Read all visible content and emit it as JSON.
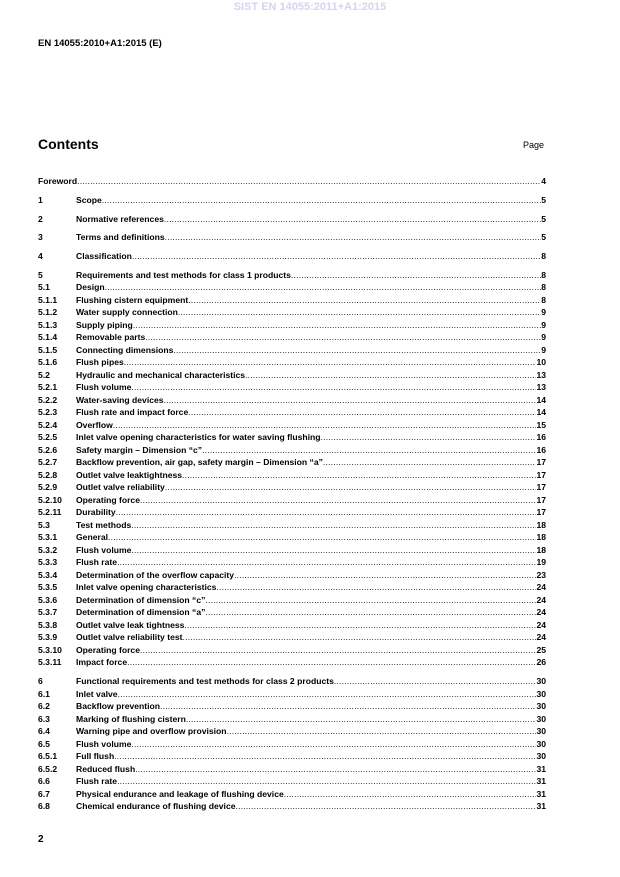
{
  "watermark": "SIST EN 14055:2011+A1:2015",
  "header": {
    "doc_id": "EN 14055:2010+A1:2015 (E)"
  },
  "contents": {
    "title": "Contents",
    "page_label": "Page",
    "entries": [
      {
        "num": "",
        "title": "Foreword",
        "page": "4",
        "major": true
      },
      {
        "num": "1",
        "title": "Scope",
        "page": "5",
        "major": true
      },
      {
        "num": "2",
        "title": "Normative references",
        "page": "5",
        "major": true
      },
      {
        "num": "3",
        "title": "Terms and definitions",
        "page": "5",
        "major": true
      },
      {
        "num": "4",
        "title": "Classification",
        "page": "8",
        "major": true
      },
      {
        "num": "5",
        "title": "Requirements and test methods for class 1 products",
        "page": "8",
        "major": true
      },
      {
        "num": "5.1",
        "title": "Design",
        "page": "8"
      },
      {
        "num": "5.1.1",
        "title": "Flushing cistern equipment",
        "page": "8"
      },
      {
        "num": "5.1.2",
        "title": "Water supply connection",
        "page": "9"
      },
      {
        "num": "5.1.3",
        "title": "Supply piping",
        "page": "9"
      },
      {
        "num": "5.1.4",
        "title": "Removable parts",
        "page": "9"
      },
      {
        "num": "5.1.5",
        "title": "Connecting dimensions",
        "page": "9"
      },
      {
        "num": "5.1.6",
        "title": "Flush pipes",
        "page": "10"
      },
      {
        "num": "5.2",
        "title": "Hydraulic and mechanical characteristics",
        "page": "13"
      },
      {
        "num": "5.2.1",
        "title": "Flush volume",
        "page": "13"
      },
      {
        "num": "5.2.2",
        "title": "Water-saving devices",
        "page": "14"
      },
      {
        "num": "5.2.3",
        "title": "Flush rate and impact force",
        "page": "14"
      },
      {
        "num": "5.2.4",
        "title": "Overflow",
        "page": "15"
      },
      {
        "num": "5.2.5",
        "title": "Inlet valve opening characteristics for water saving flushing",
        "page": "16"
      },
      {
        "num": "5.2.6",
        "title": "Safety margin – Dimension “c”",
        "page": "16"
      },
      {
        "num": "5.2.7",
        "title": "Backflow prevention, air gap, safety margin – Dimension “a”",
        "page": "17"
      },
      {
        "num": "5.2.8",
        "title": "Outlet valve leaktightness",
        "page": "17"
      },
      {
        "num": "5.2.9",
        "title": "Outlet valve reliability",
        "page": "17"
      },
      {
        "num": "5.2.10",
        "title": "Operating force",
        "page": "17"
      },
      {
        "num": "5.2.11",
        "title": "Durability",
        "page": "17"
      },
      {
        "num": "5.3",
        "title": "Test methods",
        "page": "18"
      },
      {
        "num": "5.3.1",
        "title": "General",
        "page": "18"
      },
      {
        "num": "5.3.2",
        "title": "Flush volume",
        "page": "18"
      },
      {
        "num": "5.3.3",
        "title": "Flush rate",
        "page": "19"
      },
      {
        "num": "5.3.4",
        "title": "Determination of the overflow capacity",
        "page": "23"
      },
      {
        "num": "5.3.5",
        "title": "Inlet valve opening characteristics",
        "page": "24"
      },
      {
        "num": "5.3.6",
        "title": "Determination of dimension “c”",
        "page": "24"
      },
      {
        "num": "5.3.7",
        "title": "Determination of dimension “a”",
        "page": "24"
      },
      {
        "num": "5.3.8",
        "title": "Outlet valve leak tightness",
        "page": "24"
      },
      {
        "num": "5.3.9",
        "title": "Outlet valve reliability test",
        "page": "24"
      },
      {
        "num": "5.3.10",
        "title": "Operating force",
        "page": "25"
      },
      {
        "num": "5.3.11",
        "title": "Impact force",
        "page": "26"
      },
      {
        "num": "6",
        "title": "Functional requirements and test methods for class 2 products",
        "page": "30",
        "major": true
      },
      {
        "num": "6.1",
        "title": "Inlet valve",
        "page": "30"
      },
      {
        "num": "6.2",
        "title": "Backflow prevention",
        "page": "30"
      },
      {
        "num": "6.3",
        "title": "Marking of flushing cistern",
        "page": "30"
      },
      {
        "num": "6.4",
        "title": "Warning pipe and overflow provision",
        "page": "30"
      },
      {
        "num": "6.5",
        "title": "Flush volume",
        "page": "30"
      },
      {
        "num": "6.5.1",
        "title": "Full flush",
        "page": "30"
      },
      {
        "num": "6.5.2",
        "title": "Reduced flush",
        "page": "31"
      },
      {
        "num": "6.6",
        "title": "Flush rate",
        "page": "31"
      },
      {
        "num": "6.7",
        "title": "Physical endurance and leakage of flushing device",
        "page": "31"
      },
      {
        "num": "6.8",
        "title": "Chemical endurance of flushing device",
        "page": "31"
      }
    ]
  },
  "footer": {
    "page_number": "2"
  }
}
